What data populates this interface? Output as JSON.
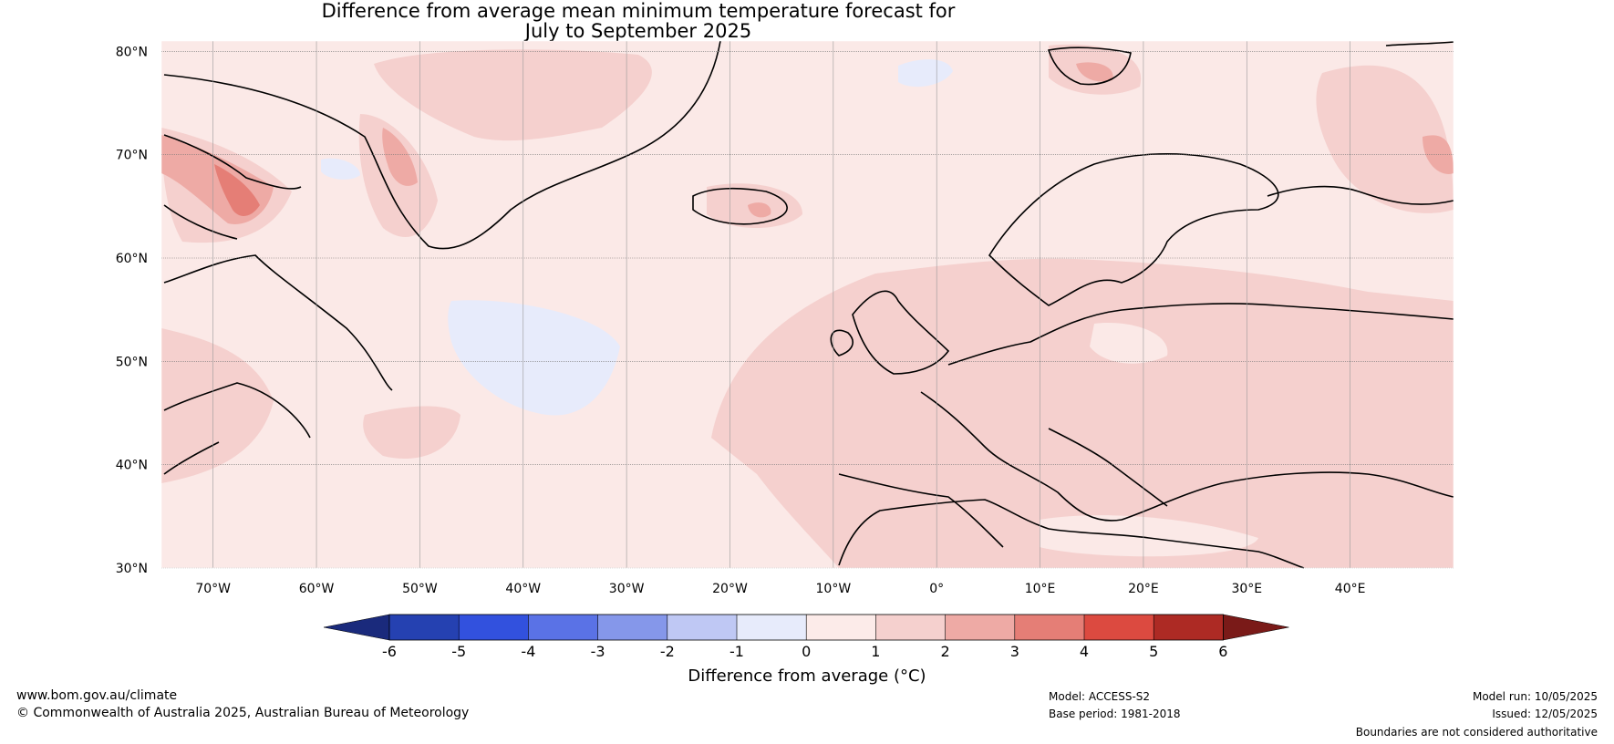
{
  "title": {
    "line1": "Difference from average mean minimum temperature forecast for",
    "line2": "July to September 2025"
  },
  "map": {
    "latitude_labels": [
      "80°N",
      "70°N",
      "60°N",
      "50°N",
      "40°N",
      "30°N"
    ],
    "longitude_labels": [
      "70°W",
      "60°W",
      "50°W",
      "40°W",
      "30°W",
      "20°W",
      "10°W",
      "0°",
      "10°E",
      "20°E",
      "30°E",
      "40°E"
    ],
    "extent": {
      "lon_min": -75,
      "lon_max": 50,
      "lat_min": 30,
      "lat_max": 81
    },
    "background_color": "#fbe9e7"
  },
  "colorbar": {
    "title": "Difference from average (°C)",
    "ticks": [
      "-6",
      "-5",
      "-4",
      "-3",
      "-2",
      "-1",
      "0",
      "1",
      "2",
      "3",
      "4",
      "5",
      "6"
    ],
    "colors": [
      "#1a2a7c",
      "#2541b1",
      "#3251de",
      "#5a72e6",
      "#8597ea",
      "#bfc8f4",
      "#e7ebfb",
      "#fcebe9",
      "#f5d0ce",
      "#eeaaa5",
      "#e57e76",
      "#dc4a40",
      "#ad2a24",
      "#7a1a18"
    ]
  },
  "footer": {
    "website": "www.bom.gov.au/climate",
    "copyright": "© Commonwealth of Australia 2025, Australian Bureau of Meteorology",
    "model": "Model: ACCESS-S2",
    "base_period": "Base period: 1981-2018",
    "model_run": "Model run: 10/05/2025",
    "issued": "Issued: 12/05/2025",
    "disclaimer": "Boundaries are not considered authoritative"
  }
}
